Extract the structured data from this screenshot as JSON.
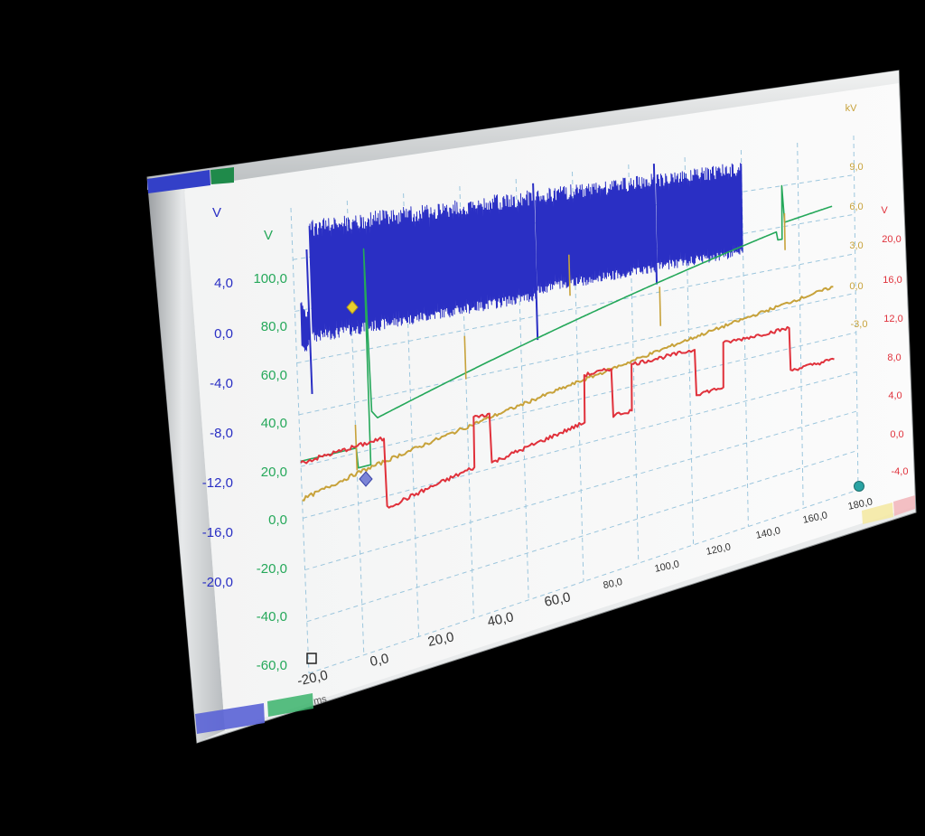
{
  "colors": {
    "background": "#000000",
    "screen": "#f7f8f8",
    "grid": "#9cc6dd",
    "bezel": "#c8ccce",
    "ch_blue": "#2a2fc4",
    "ch_green": "#25a85a",
    "ch_yellow": "#c7a23a",
    "ch_red": "#e0313b",
    "x_text": "#333333"
  },
  "chart_data": {
    "type": "line",
    "x_axis": {
      "ticks": [
        "-20,0",
        "0,0",
        "20,0",
        "40,0",
        "60,0",
        "80,0",
        "100,0",
        "120,0",
        "140,0",
        "160,0",
        "180,0"
      ],
      "range": [
        -20,
        180
      ],
      "unit": "ms"
    },
    "y_axes": [
      {
        "id": "blue",
        "unit": "V",
        "color": "#2a2fc4",
        "range": [
          -24,
          8
        ],
        "ticks": [
          "4,0",
          "0,0",
          "-4,0",
          "-8,0",
          "-12,0",
          "-16,0",
          "-20,0"
        ]
      },
      {
        "id": "green",
        "unit": "V",
        "color": "#25a85a",
        "range": [
          -60,
          120
        ],
        "ticks": [
          "100,0",
          "80,0",
          "60,0",
          "40,0",
          "20,0",
          "0,0",
          "-20,0",
          "-40,0",
          "-60,0"
        ]
      },
      {
        "id": "yellow",
        "unit": "kV",
        "color": "#c7a23a",
        "range": [
          -60,
          15
        ],
        "ticks": [
          "9,0",
          "6,0",
          "3,0",
          "0,0",
          "-3,0"
        ]
      },
      {
        "id": "red",
        "unit": "V",
        "color": "#e0313b",
        "range": [
          -24,
          28
        ],
        "ticks": [
          "20,0",
          "16,0",
          "12,0",
          "8,0",
          "4,0",
          "0,0",
          "-4,0"
        ]
      }
    ],
    "series": [
      {
        "axis": "blue",
        "style": "dense-oscillation",
        "bursts": [
          {
            "x_start": -18,
            "x_end": -15,
            "low": -2.0,
            "high": 1.5
          },
          {
            "x_start": -14,
            "x_end": 66,
            "low": -1.5,
            "high": 7.0
          },
          {
            "x_start": 66.5,
            "x_end": 109,
            "low": -1.0,
            "high": 7.0
          },
          {
            "x_start": 109.5,
            "x_end": 140,
            "low": -1.0,
            "high": 7.0
          }
        ],
        "spikes": [
          {
            "x": -15,
            "low": -5.0,
            "high": 5.0
          },
          {
            "x": 66,
            "low": -4.5,
            "high": 7.5
          },
          {
            "x": 109,
            "low": -2.0,
            "high": 7.8
          }
        ]
      },
      {
        "axis": "green",
        "points": [
          [
            -20,
            22
          ],
          [
            0,
            22
          ],
          [
            0.5,
            14
          ],
          [
            5,
            14
          ],
          [
            5.2,
            100
          ],
          [
            6,
            35
          ],
          [
            8,
            32
          ],
          [
            152,
            78
          ],
          [
            152.5,
            74
          ],
          [
            154,
            74
          ],
          [
            154.2,
            100
          ],
          [
            155,
            82
          ],
          [
            172,
            86
          ]
        ]
      },
      {
        "axis": "yellow",
        "points": [
          [
            -20,
            -32
          ],
          [
            0,
            -30
          ],
          [
            172,
            -16
          ]
        ],
        "spikes": [
          [
            0,
            -28
          ],
          [
            40,
            -17
          ],
          [
            78,
            -6
          ],
          [
            110,
            -15
          ],
          [
            155,
            -5
          ]
        ]
      },
      {
        "axis": "red",
        "points": [
          [
            -20,
            -0.5
          ],
          [
            7,
            0
          ],
          [
            10,
            0
          ],
          [
            10.3,
            -8
          ],
          [
            42,
            -6
          ],
          [
            42.3,
            0
          ],
          [
            48,
            0
          ],
          [
            48.3,
            -6
          ],
          [
            82,
            -4
          ],
          [
            82.3,
            2
          ],
          [
            92,
            2
          ],
          [
            92.3,
            -4
          ],
          [
            99,
            -4
          ],
          [
            99.3,
            2
          ],
          [
            122,
            2
          ],
          [
            122.3,
            -4
          ],
          [
            132,
            -4
          ],
          [
            132.3,
            2
          ],
          [
            156,
            2
          ],
          [
            156.3,
            -4
          ],
          [
            172,
            -4
          ]
        ]
      }
    ]
  }
}
